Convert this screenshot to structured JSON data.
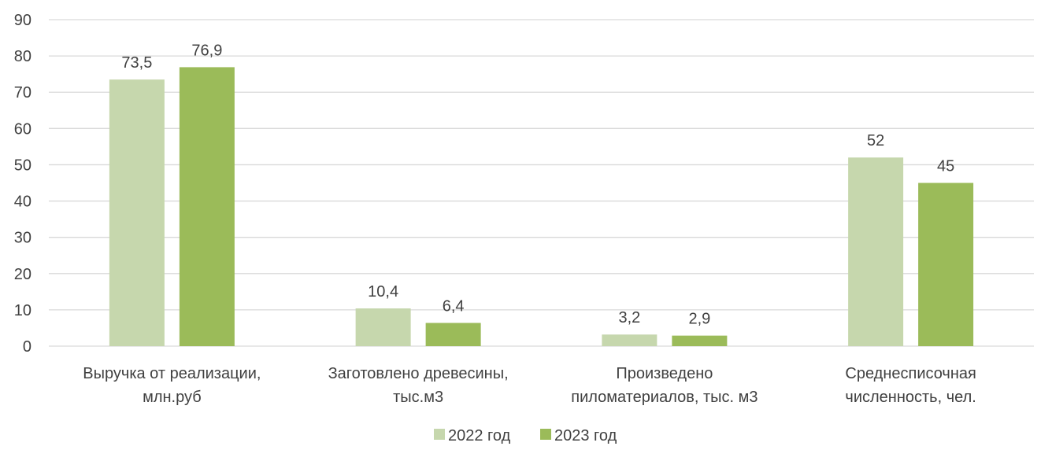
{
  "chart_data": {
    "type": "bar",
    "categories": [
      [
        "Выручка от реализации,",
        "млн.руб"
      ],
      [
        "Заготовлено древесины,",
        "тыс.м3"
      ],
      [
        "Произведено",
        "пиломатериалов, тыс. м3"
      ],
      [
        "Среднесписочная",
        "численность, чел."
      ]
    ],
    "series": [
      {
        "name": "2022 год",
        "color": "#c6d7ad",
        "values": [
          73.5,
          10.4,
          3.2,
          52
        ],
        "labels": [
          "73,5",
          "10,4",
          "3,2",
          "52"
        ]
      },
      {
        "name": "2023 год",
        "color": "#9bbb59",
        "values": [
          76.9,
          6.4,
          2.9,
          45
        ],
        "labels": [
          "76,9",
          "6,4",
          "2,9",
          "45"
        ]
      }
    ],
    "yticks": [
      "0",
      "10",
      "20",
      "30",
      "40",
      "50",
      "60",
      "70",
      "80",
      "90"
    ],
    "ylim": [
      0,
      90
    ],
    "grid": true,
    "legend_position": "bottom-center",
    "gridline_color": "#d9d9d9"
  }
}
